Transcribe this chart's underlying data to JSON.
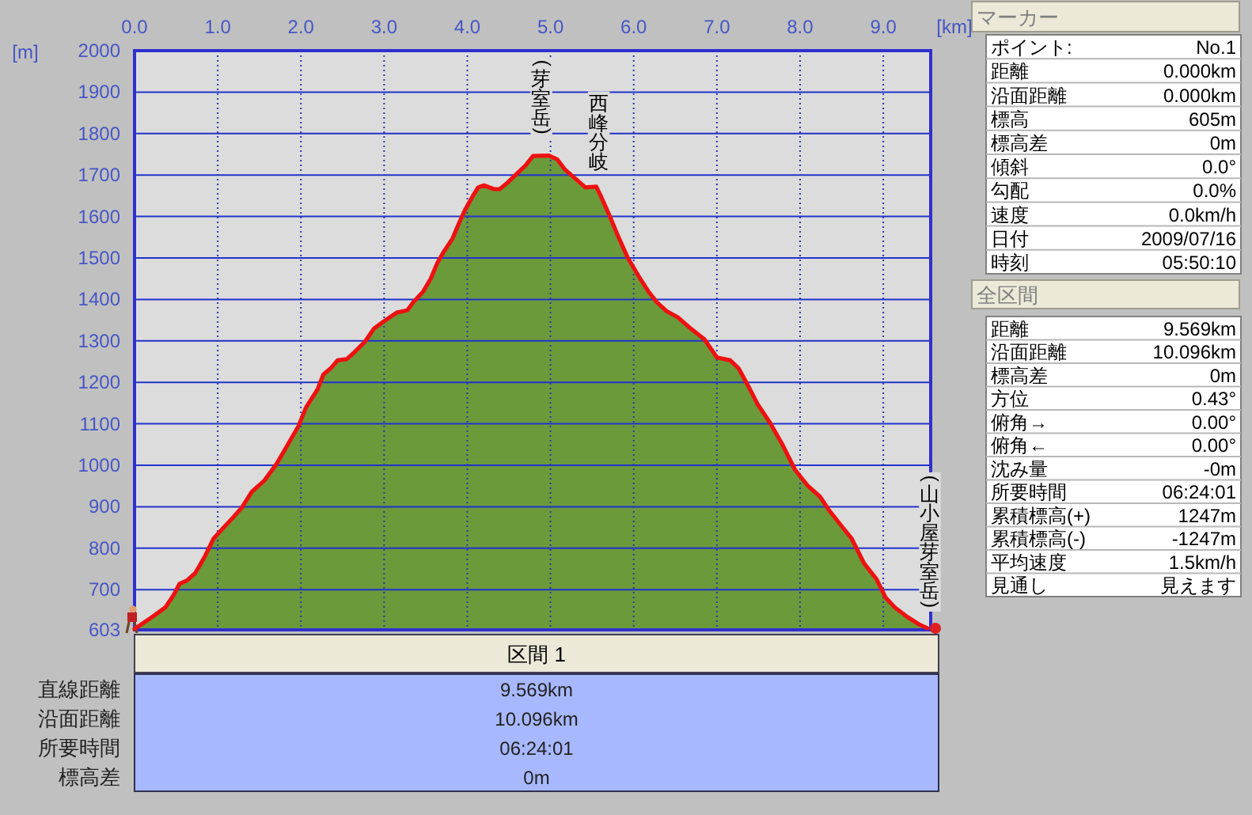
{
  "chart_data": [
    {
      "type": "area",
      "xlabel": "[km]",
      "ylabel": "[m]",
      "xlim": [
        0,
        9.57
      ],
      "xticks": [
        {
          "value": 0,
          "label": "0.0"
        },
        {
          "value": 1,
          "label": "1.0"
        },
        {
          "value": 2,
          "label": "2.0"
        },
        {
          "value": 3,
          "label": "3.0"
        },
        {
          "value": 4,
          "label": "4.0"
        },
        {
          "value": 5,
          "label": "5.0"
        },
        {
          "value": 6,
          "label": "6.0"
        },
        {
          "value": 7,
          "label": "7.0"
        },
        {
          "value": 8,
          "label": "8.0"
        },
        {
          "value": 9,
          "label": "9.0"
        }
      ],
      "ylim": [
        603,
        2000
      ],
      "yticks": [
        603,
        700,
        800,
        900,
        1000,
        1100,
        1200,
        1300,
        1400,
        1500,
        1600,
        1700,
        1800,
        1900,
        2000
      ],
      "grid": true,
      "x": [
        0,
        0.13,
        0.24,
        0.37,
        0.47,
        0.54,
        0.63,
        0.73,
        0.84,
        0.95,
        1.04,
        1.18,
        1.29,
        1.41,
        1.56,
        1.71,
        1.84,
        1.97,
        2.06,
        2.2,
        2.27,
        2.36,
        2.44,
        2.55,
        2.64,
        2.77,
        2.88,
        2.99,
        3.15,
        3.28,
        3.35,
        3.47,
        3.56,
        3.64,
        3.72,
        3.82,
        3.9,
        3.97,
        4.06,
        4.13,
        4.2,
        4.32,
        4.39,
        4.48,
        4.6,
        4.7,
        4.79,
        4.98,
        5.08,
        5.17,
        5.3,
        5.42,
        5.55,
        5.61,
        5.71,
        5.8,
        5.93,
        6.06,
        6.18,
        6.28,
        6.4,
        6.53,
        6.69,
        6.85,
        7.0,
        7.16,
        7.26,
        7.38,
        7.49,
        7.64,
        7.79,
        7.94,
        8.09,
        8.24,
        8.35,
        8.5,
        8.62,
        8.77,
        8.92,
        9.03,
        9.14,
        9.29,
        9.44,
        9.53
      ],
      "series": [
        {
          "type": "area",
          "color": "#6b9a3a",
          "values": [
            605,
            623,
            638,
            657,
            687,
            714,
            722,
            740,
            778,
            823,
            843,
            873,
            898,
            936,
            963,
            1004,
            1049,
            1094,
            1139,
            1183,
            1219,
            1234,
            1253,
            1256,
            1272,
            1298,
            1330,
            1346,
            1368,
            1374,
            1393,
            1419,
            1450,
            1488,
            1516,
            1546,
            1584,
            1615,
            1647,
            1670,
            1675,
            1666,
            1666,
            1681,
            1704,
            1723,
            1746,
            1747,
            1738,
            1714,
            1691,
            1670,
            1672,
            1647,
            1602,
            1558,
            1500,
            1456,
            1418,
            1393,
            1371,
            1357,
            1329,
            1304,
            1260,
            1253,
            1234,
            1190,
            1147,
            1102,
            1049,
            989,
            951,
            924,
            891,
            853,
            823,
            763,
            725,
            680,
            657,
            634,
            615,
            607
          ]
        }
      ],
      "annotations": [
        {
          "text": "(芽室岳)",
          "x": 4.89,
          "y": 1747
        },
        {
          "text": "西峰分岐",
          "x": 5.58,
          "y": 1665
        },
        {
          "text": "(山小屋芽室岳)",
          "x": 9.56,
          "y": 605
        }
      ]
    },
    {
      "type": "other",
      "title": "マーカー",
      "annotations": [
        "ポイント:",
        "No.1",
        "距離",
        "0.000km",
        "沿面距離",
        "0.000km",
        "標高",
        "605m",
        "標高差",
        "0m",
        "傾斜",
        "0.0°",
        "勾配",
        "0.0%",
        "速度",
        "0.0km/h",
        "日付",
        "2009/07/16",
        "時刻",
        "05:50:10"
      ]
    },
    {
      "type": "other",
      "title": "全区間",
      "annotations": [
        "距離",
        "9.569km",
        "沿面距離",
        "10.096km",
        "標高差",
        "0m",
        "方位",
        "0.43°",
        "俯角→",
        "0.00°",
        "俯角←",
        "0.00°",
        "沈み量",
        "-0m",
        "所要時間",
        "06:24:01",
        "累積標高(+)",
        "1247m",
        "累積標高(-)",
        "-1247m",
        "平均速度",
        "1.5km/h",
        "見通し",
        "見えます"
      ]
    },
    {
      "type": "other",
      "title": "区間 1",
      "annotations": [
        "直線距離",
        "9.569km",
        "沿面距離",
        "10.096km",
        "所要時間",
        "06:24:01",
        "標高差",
        "0m"
      ]
    }
  ]
}
